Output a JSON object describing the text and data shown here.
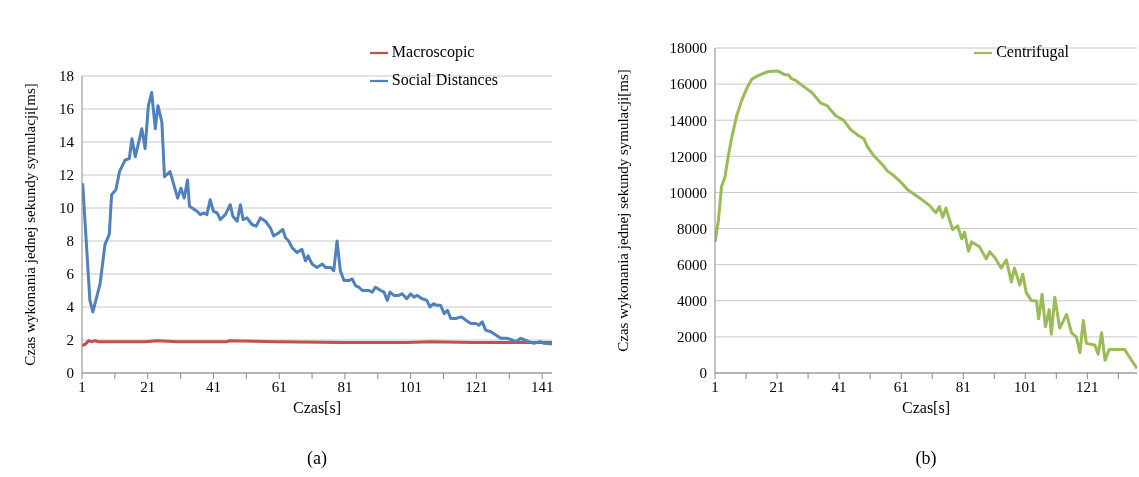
{
  "chart_data": [
    {
      "type": "line",
      "xlabel": "Czas[s]",
      "ylabel": "Czas wykonania jednej sekundy symulacji[ms]",
      "annotations": [
        "(a)"
      ],
      "xlim": [
        1,
        144
      ],
      "xticks": [
        1,
        {
          "value": 11,
          "label": null
        },
        21,
        {
          "value": 31,
          "label": null
        },
        41,
        {
          "value": 51,
          "label": null
        },
        61,
        {
          "value": 71,
          "label": null
        },
        81,
        {
          "value": 91,
          "label": null
        },
        101,
        {
          "value": 111,
          "label": null
        },
        121,
        {
          "value": 131,
          "label": null
        },
        141
      ],
      "ylim": [
        0,
        18
      ],
      "yticks": [
        0,
        2,
        4,
        6,
        8,
        10,
        12,
        14,
        16,
        18
      ],
      "grid": "y",
      "legend": "top right",
      "marker": "none",
      "line_style": "solid",
      "series": [
        {
          "name": "Macroscopic",
          "color": "#c0504d",
          "x": [
            1,
            2,
            3,
            4,
            5,
            6,
            10,
            20,
            24,
            30,
            45,
            46,
            60,
            80,
            100,
            107,
            120,
            144
          ],
          "values": [
            1.65,
            1.75,
            1.95,
            1.9,
            1.95,
            1.9,
            1.9,
            1.9,
            1.95,
            1.9,
            1.9,
            1.95,
            1.9,
            1.85,
            1.85,
            1.9,
            1.85,
            1.85
          ]
        },
        {
          "name": "Social Distances",
          "color": "#4f81bd",
          "x": [
            1.2,
            3.4,
            4.3,
            6.5,
            8,
            9.3,
            10,
            11.3,
            12.4,
            14.1,
            15.4,
            16.2,
            17.2,
            19.2,
            20.2,
            21.2,
            22.2,
            23.3,
            24.1,
            25.3,
            26.1,
            27.8,
            30.1,
            31.1,
            32.1,
            33.1,
            33.7,
            36,
            37,
            38,
            39,
            40,
            41,
            42.1,
            43.1,
            44.6,
            46.1,
            46.9,
            48.2,
            49.2,
            50,
            51.2,
            52.7,
            54,
            55.3,
            56.8,
            58.3,
            59.3,
            60.9,
            62.1,
            62.9,
            63.9,
            64.9,
            66.4,
            67.9,
            69,
            69.8,
            71,
            72.5,
            74.1,
            75.1,
            76.6,
            77.6,
            78.6,
            79.6,
            80.7,
            82.2,
            83.2,
            84.2,
            85.2,
            86.3,
            88.3,
            89.3,
            90.3,
            91.9,
            92.9,
            93.9,
            94.7,
            95.9,
            97.4,
            98.4,
            99.8,
            101,
            102,
            103,
            104.5,
            105.9,
            106.9,
            107.9,
            108.9,
            110.1,
            111.2,
            112.2,
            113.2,
            114.7,
            116.5,
            117.8,
            119.3,
            120.8,
            121.8,
            122.8,
            123.8,
            125.4,
            126.9,
            128.4,
            130.4,
            132,
            133,
            134.5,
            135.7,
            137,
            138.5,
            140.4,
            141.6,
            144
          ],
          "values": [
            11.5,
            4.4,
            3.7,
            5.4,
            7.8,
            8.4,
            10.8,
            11.1,
            12.2,
            12.9,
            13,
            14.2,
            13.1,
            14.8,
            13.6,
            16.2,
            17,
            14.8,
            16.2,
            15.2,
            11.9,
            12.2,
            10.6,
            11.2,
            10.6,
            11.7,
            10.1,
            9.8,
            9.6,
            9.7,
            9.6,
            10.5,
            9.8,
            9.7,
            9.3,
            9.6,
            10.2,
            9.5,
            9.2,
            10.2,
            9.3,
            9.4,
            9,
            8.9,
            9.4,
            9.2,
            8.8,
            8.3,
            8.5,
            8.7,
            8.2,
            8,
            7.6,
            7.3,
            7.5,
            6.8,
            7.1,
            6.6,
            6.4,
            6.6,
            6.4,
            6.4,
            6.2,
            8,
            6.2,
            5.6,
            5.6,
            5.7,
            5.3,
            5.2,
            5,
            5,
            4.9,
            5.2,
            5,
            4.9,
            4.4,
            4.9,
            4.7,
            4.7,
            4.8,
            4.5,
            4.8,
            4.6,
            4.7,
            4.5,
            4.4,
            4,
            4.2,
            4.1,
            4.1,
            3.6,
            3.8,
            3.3,
            3.3,
            3.4,
            3.2,
            3,
            3,
            2.9,
            3.1,
            2.6,
            2.5,
            2.3,
            2.1,
            2.1,
            2,
            1.9,
            2.1,
            2,
            1.9,
            1.8,
            1.9,
            1.8,
            1.75
          ]
        }
      ]
    },
    {
      "type": "line",
      "xlabel": "Czas[s]",
      "ylabel": "Czas wykonania jednej sekundy symulacji[ms]",
      "annotations": [
        "(b)"
      ],
      "xlim": [
        1,
        137
      ],
      "xticks": [
        1,
        {
          "value": 11,
          "label": null
        },
        21,
        {
          "value": 31,
          "label": null
        },
        41,
        {
          "value": 51,
          "label": null
        },
        61,
        {
          "value": 71,
          "label": null
        },
        81,
        {
          "value": 91,
          "label": null
        },
        101,
        {
          "value": 111,
          "label": null
        },
        121,
        {
          "value": 131,
          "label": null
        }
      ],
      "ylim": [
        0,
        18000
      ],
      "yticks": [
        0,
        2000,
        4000,
        6000,
        8000,
        10000,
        12000,
        14000,
        16000,
        18000
      ],
      "grid": "y",
      "legend": "top right",
      "marker": "none",
      "line_style": "solid",
      "series": [
        {
          "name": "Centrifugal",
          "color": "#9bbb59",
          "x": [
            1,
            2.1,
            3.1,
            4.2,
            5.3,
            6.4,
            8,
            9.6,
            11.3,
            12.8,
            15.1,
            16.6,
            18.3,
            21.2,
            23.1,
            24.8,
            25.5,
            26.9,
            29.6,
            32.3,
            35,
            37.2,
            39.9,
            42.5,
            44.7,
            47.3,
            49,
            50.1,
            52.2,
            54.9,
            56.6,
            58.7,
            61.3,
            63,
            65.2,
            67.3,
            70,
            72.2,
            73.3,
            74.4,
            75.4,
            77.6,
            79.2,
            80.5,
            81.4,
            82.7,
            83.7,
            86.2,
            88.4,
            89.5,
            91.1,
            93.2,
            94.9,
            96.5,
            97.5,
            99.2,
            100.2,
            101.3,
            102.9,
            104.6,
            105.3,
            106.4,
            107.5,
            108.7,
            109.4,
            110.5,
            112.1,
            114.3,
            115.9,
            117.5,
            118.6,
            119.7,
            120.7,
            123.4,
            124.5,
            125.6,
            126.7,
            128,
            133,
            137
          ],
          "values": [
            7260,
            8450,
            10330,
            10840,
            12030,
            13050,
            14250,
            15100,
            15780,
            16260,
            16490,
            16600,
            16700,
            16730,
            16550,
            16490,
            16320,
            16210,
            15860,
            15520,
            14960,
            14790,
            14250,
            13990,
            13480,
            13140,
            12970,
            12540,
            12030,
            11550,
            11180,
            10920,
            10500,
            10160,
            9900,
            9650,
            9300,
            8880,
            9220,
            8620,
            9130,
            7940,
            8150,
            7430,
            7800,
            6750,
            7260,
            7000,
            6320,
            6710,
            6410,
            5810,
            6270,
            5040,
            5810,
            4870,
            5470,
            4450,
            4020,
            3990,
            3000,
            4360,
            2570,
            3510,
            2150,
            4190,
            2490,
            3250,
            2230,
            1980,
            1120,
            2910,
            1640,
            1550,
            1040,
            2230,
            700,
            1300,
            1300,
            250
          ]
        }
      ]
    }
  ]
}
